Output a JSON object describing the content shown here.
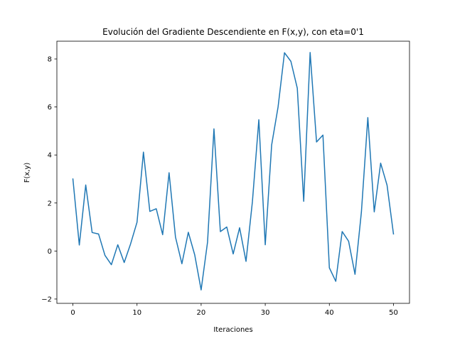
{
  "chart_data": {
    "type": "line",
    "title": "Evolución del Gradiente Descendiente en F(x,y), con eta=0'1",
    "xlabel": "Iteraciones",
    "ylabel": "F(x,y)",
    "xlim": [
      -2.5,
      52.5
    ],
    "ylim": [
      -2.18,
      8.74
    ],
    "xticks": [
      0,
      10,
      20,
      30,
      40,
      50
    ],
    "yticks": [
      -2,
      0,
      2,
      4,
      6,
      8
    ],
    "xtick_labels": [
      "0",
      "10",
      "20",
      "30",
      "40",
      "50"
    ],
    "ytick_labels": [
      "−2",
      "0",
      "2",
      "4",
      "6",
      "8"
    ],
    "grid": false,
    "series": [
      {
        "color": "#1f77b4",
        "x": [
          0,
          1,
          2,
          3,
          4,
          5,
          6,
          7,
          8,
          9,
          10,
          11,
          12,
          13,
          14,
          15,
          16,
          17,
          18,
          19,
          20,
          21,
          22,
          23,
          24,
          25,
          26,
          27,
          28,
          29,
          30,
          31,
          32,
          33,
          34,
          35,
          36,
          37,
          38,
          39,
          40,
          41,
          42,
          43,
          44,
          45,
          46,
          47,
          48,
          49,
          50
        ],
        "y": [
          3.0,
          0.25,
          2.75,
          0.77,
          0.71,
          -0.18,
          -0.57,
          0.26,
          -0.48,
          0.3,
          1.2,
          4.12,
          1.65,
          1.76,
          0.68,
          3.26,
          0.58,
          -0.53,
          0.78,
          -0.16,
          -1.62,
          0.37,
          5.09,
          0.81,
          1.0,
          -0.12,
          0.97,
          -0.43,
          2.06,
          5.47,
          0.26,
          4.42,
          6.0,
          8.26,
          7.9,
          6.78,
          2.07,
          8.27,
          4.54,
          4.83,
          -0.7,
          -1.26,
          0.81,
          0.41,
          -0.97,
          1.63,
          5.56,
          1.63,
          3.66,
          2.74,
          0.71
        ]
      }
    ]
  }
}
